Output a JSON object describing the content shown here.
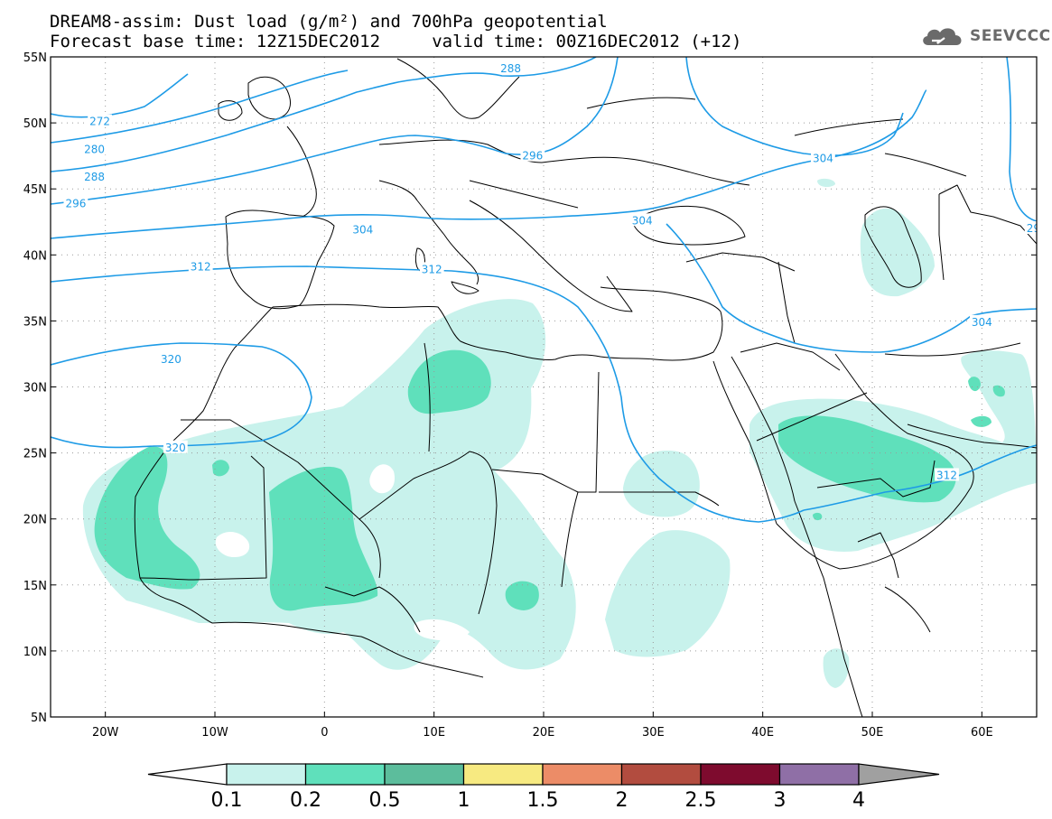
{
  "header": {
    "title_line1": "DREAM8-assim: Dust load (g/m²) and 700hPa geopotential",
    "title_line2": "Forecast base time: 12Z15DEC2012     valid time: 00Z16DEC2012 (+12)",
    "logo_text": "SEEVCCC",
    "logo_icon": "cloud-icon"
  },
  "map": {
    "lon_range": [
      -25,
      65
    ],
    "lat_range": [
      5,
      55
    ],
    "lat_labels": [
      "55N",
      "50N",
      "45N",
      "40N",
      "35N",
      "30N",
      "25N",
      "20N",
      "15N",
      "10N",
      "5N"
    ],
    "lon_labels": [
      "20W",
      "10W",
      "0",
      "10E",
      "20E",
      "30E",
      "40E",
      "50E",
      "60E"
    ],
    "grid": "dotted",
    "contour_color": "#1e9be6",
    "contour_labels": [
      {
        "text": "272",
        "lon": -20.5,
        "lat": 50.1
      },
      {
        "text": "280",
        "lon": -21.0,
        "lat": 48.0
      },
      {
        "text": "288",
        "lon": -21.0,
        "lat": 45.9
      },
      {
        "text": "296",
        "lon": -22.7,
        "lat": 43.9
      },
      {
        "text": "288",
        "lon": 17.0,
        "lat": 54.1
      },
      {
        "text": "296",
        "lon": 19.0,
        "lat": 47.5
      },
      {
        "text": "304",
        "lon": 3.5,
        "lat": 41.9
      },
      {
        "text": "304",
        "lon": 29.0,
        "lat": 42.6
      },
      {
        "text": "304",
        "lon": 45.5,
        "lat": 47.3
      },
      {
        "text": "312",
        "lon": -11.3,
        "lat": 39.1
      },
      {
        "text": "312",
        "lon": 9.8,
        "lat": 38.9
      },
      {
        "text": "320",
        "lon": -14.0,
        "lat": 32.1
      },
      {
        "text": "320",
        "lon": -13.6,
        "lat": 25.4
      },
      {
        "text": "304",
        "lon": 60.0,
        "lat": 34.9
      },
      {
        "text": "312",
        "lon": 56.8,
        "lat": 23.3
      },
      {
        "text": "29",
        "lon": 64.7,
        "lat": 42.0
      }
    ]
  },
  "colorbar": {
    "labels": [
      "0.1",
      "0.2",
      "0.5",
      "1",
      "1.5",
      "2",
      "2.5",
      "3",
      "4"
    ],
    "colors": [
      "#c8f2ec",
      "#5fe0bb",
      "#5cbd9c",
      "#f7ea81",
      "#ec8c67",
      "#b24c3f",
      "#7e0b2e",
      "#8f6fa6"
    ],
    "low_color": "#ffffff",
    "high_color": "#a0a0a0"
  }
}
